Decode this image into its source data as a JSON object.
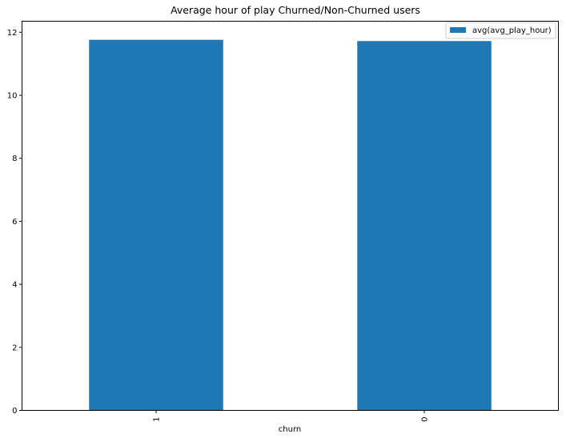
{
  "chart_data": {
    "type": "bar",
    "title": "Average hour of play Churned/Non-Churned users",
    "xlabel": "churn",
    "ylabel": "",
    "categories": [
      "1",
      "0"
    ],
    "series": [
      {
        "name": "avg(avg_play_hour)",
        "values": [
          11.76,
          11.72
        ],
        "color": "#1f77b4"
      }
    ],
    "yticks": [
      0,
      2,
      4,
      6,
      8,
      10,
      12
    ],
    "ylim": [
      0,
      12.35
    ],
    "grid": false,
    "legend_position": "top-right"
  }
}
